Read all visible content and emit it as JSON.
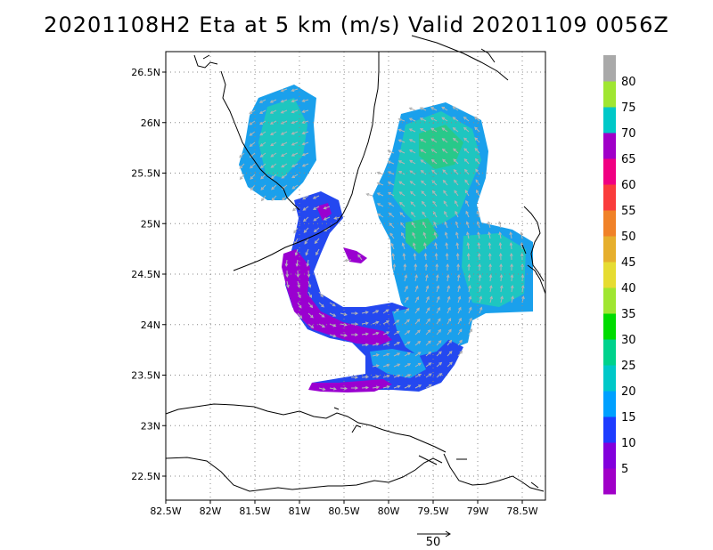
{
  "title": "20201108H2 Eta at 5 km (m/s) Valid 20201109 0056Z",
  "map": {
    "lat_ticks": [
      "26.5N",
      "26N",
      "25.5N",
      "25N",
      "24.5N",
      "24N",
      "23.5N",
      "23N",
      "22.5N"
    ],
    "lon_ticks": [
      "82.5W",
      "82W",
      "81.5W",
      "81W",
      "80.5W",
      "80W",
      "79.5W",
      "79W",
      "78.5W"
    ],
    "lat_range": [
      22.25,
      26.75
    ],
    "lon_range": [
      -82.5,
      -78.1
    ],
    "grid": "dotted",
    "coastline_color": "#000000"
  },
  "colorbar": {
    "labels": [
      "5",
      "10",
      "15",
      "20",
      "25",
      "30",
      "35",
      "40",
      "45",
      "50",
      "55",
      "60",
      "65",
      "70",
      "75",
      "80"
    ],
    "colors": [
      "#a000c8",
      "#8200dc",
      "#1e3cff",
      "#00a0ff",
      "#00c8c8",
      "#00d28c",
      "#00dc00",
      "#a0e632",
      "#e6dc32",
      "#e6af2d",
      "#f08228",
      "#fa3c3c",
      "#f00082",
      "#a000c8",
      "#00c8c8",
      "#a0e632",
      "#a9a9a9"
    ]
  },
  "vector_key": {
    "label": "50"
  }
}
